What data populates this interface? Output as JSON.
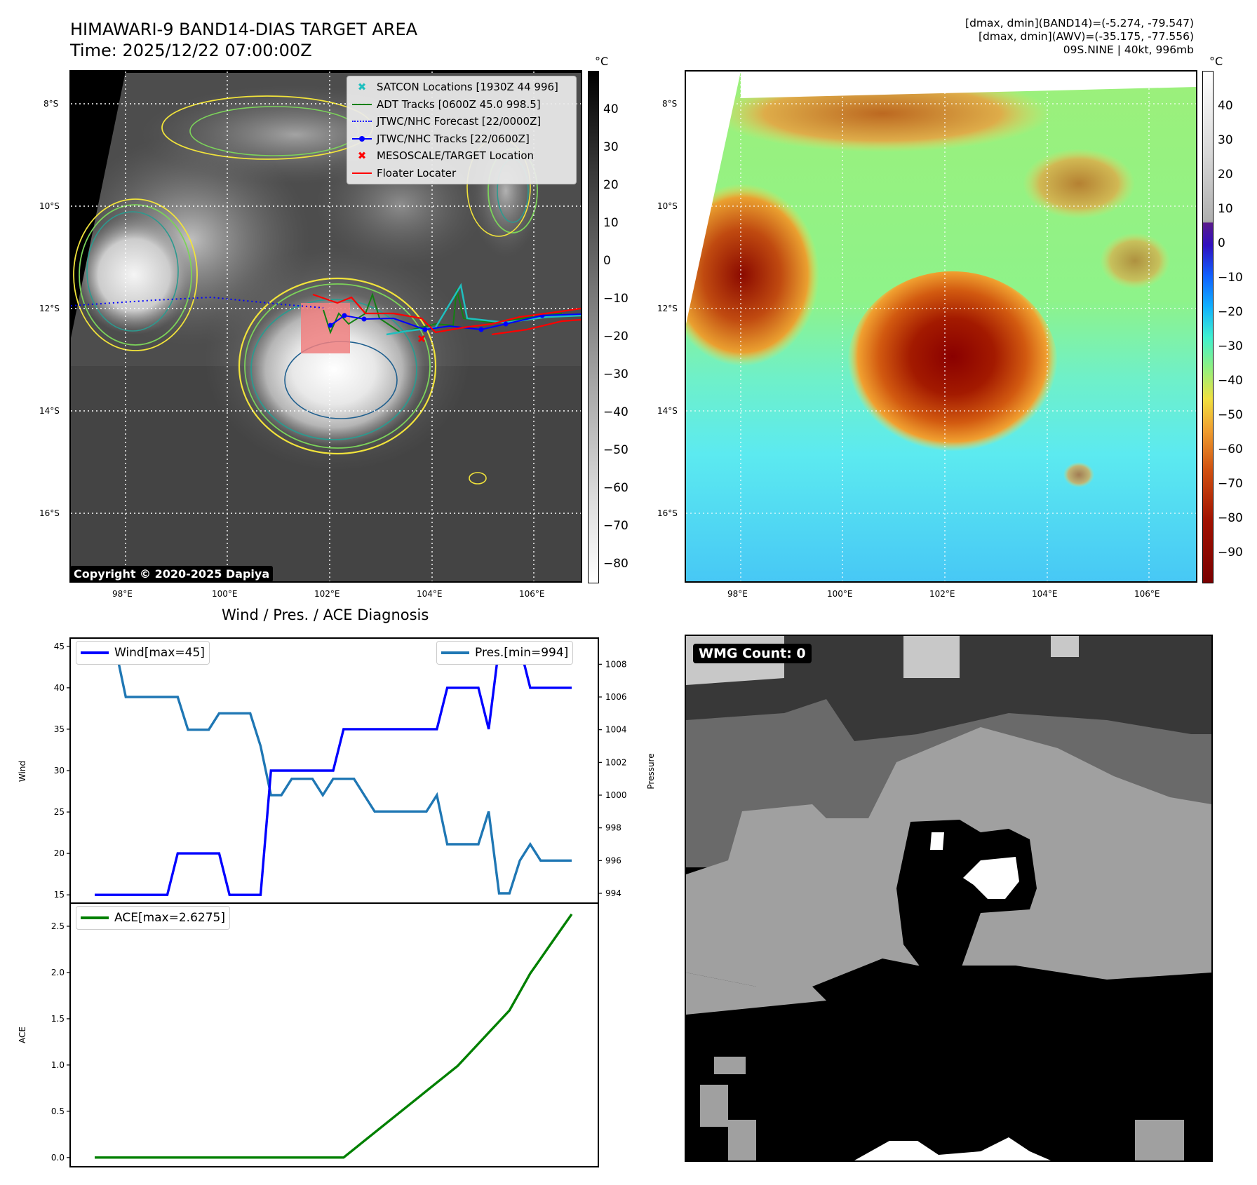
{
  "header": {
    "title_line1": "HIMAWARI-9 BAND14-DIAS TARGET AREA",
    "title_line2": "Time: 2025/12/22 07:00:00Z",
    "info_line1": "[dmax, dmin](BAND14)=(-5.274, -79.547)",
    "info_line2": "[dmax, dmin](AWV)=(-35.175, -77.556)",
    "info_line3": "09S.NINE | 40kt, 996mb"
  },
  "ir_map": {
    "lat_ticks": [
      "8°S",
      "10°S",
      "12°S",
      "14°S",
      "16°S"
    ],
    "lon_ticks": [
      "98°E",
      "100°E",
      "102°E",
      "104°E",
      "106°E"
    ],
    "colorbar_unit": "°C",
    "colorbar_ticks": [
      "40",
      "30",
      "20",
      "10",
      "0",
      "−10",
      "−20",
      "−30",
      "−40",
      "−50",
      "−60",
      "−70",
      "−80"
    ],
    "copyright": "Copyright © 2020-2025 Dapiya",
    "legend": [
      {
        "label": "SATCON Locations [1930Z 44 996]",
        "color": "#1fbfbf",
        "symbol": "x"
      },
      {
        "label": "ADT Tracks [0600Z 45.0 998.5]",
        "color": "#138013",
        "symbol": "line"
      },
      {
        "label": "JTWC/NHC Forecast [22/0000Z]",
        "color": "#0000ff",
        "symbol": "dotted"
      },
      {
        "label": "JTWC/NHC Tracks [22/0600Z]",
        "color": "#0000ff",
        "symbol": "line-dot"
      },
      {
        "label": "MESOSCALE/TARGET Location",
        "color": "#ff0000",
        "symbol": "x"
      },
      {
        "label": "Floater Locater",
        "color": "#ff0000",
        "symbol": "line"
      }
    ]
  },
  "color_map": {
    "lat_ticks": [
      "8°S",
      "10°S",
      "12°S",
      "14°S",
      "16°S"
    ],
    "lon_ticks": [
      "98°E",
      "100°E",
      "102°E",
      "104°E",
      "106°E"
    ],
    "colorbar_unit": "°C",
    "colorbar_ticks": [
      "40",
      "30",
      "20",
      "10",
      "0",
      "−10",
      "−20",
      "−30",
      "−40",
      "−50",
      "−60",
      "−70",
      "−80",
      "−90"
    ]
  },
  "diagnosis": {
    "title": "Wind / Pres. / ACE Diagnosis",
    "wind_ylabel": "Wind",
    "pres_ylabel": "Pressure",
    "ace_ylabel": "ACE",
    "wind_legend": "Wind[max=45]",
    "pres_legend": "Pres.[min=994]",
    "ace_legend": "ACE[max=2.6275]",
    "wind_ticks": [
      "45",
      "40",
      "35",
      "30",
      "25",
      "20",
      "15"
    ],
    "pres_ticks": [
      "1008",
      "1006",
      "1004",
      "1002",
      "1000",
      "998",
      "996",
      "994"
    ],
    "ace_ticks": [
      "2.5",
      "2.0",
      "1.5",
      "1.0",
      "0.5",
      "0.0"
    ]
  },
  "wmg": {
    "label": "WMG Count: 0"
  },
  "chart_data": [
    {
      "type": "line",
      "title": "Wind / Pres. / ACE Diagnosis",
      "ylabel": "Wind",
      "ylim": [
        14,
        46
      ],
      "series": [
        {
          "name": "Wind[max=45]",
          "color": "#0000ff",
          "values": [
            15,
            15,
            15,
            15,
            15,
            15,
            15,
            15,
            20,
            20,
            20,
            20,
            20,
            15,
            15,
            15,
            15,
            30,
            30,
            30,
            30,
            30,
            30,
            30,
            35,
            35,
            35,
            35,
            35,
            35,
            35,
            35,
            35,
            35,
            40,
            40,
            40,
            40,
            35,
            45,
            45,
            45,
            40,
            40,
            40,
            40,
            40
          ]
        }
      ]
    },
    {
      "type": "line",
      "ylabel": "Pressure",
      "ylim": [
        993.4,
        1009.6
      ],
      "series": [
        {
          "name": "Pres.[min=994]",
          "color": "#1f77b4",
          "values": [
            1009,
            1009,
            1009,
            1006,
            1006,
            1006,
            1006,
            1006,
            1006,
            1004,
            1004,
            1004,
            1005,
            1005,
            1005,
            1005,
            1003,
            1000,
            1000,
            1001,
            1001,
            1001,
            1000,
            1001,
            1001,
            1001,
            1000,
            999,
            999,
            999,
            999,
            999,
            999,
            1000,
            997,
            997,
            997,
            997,
            999,
            994,
            994,
            996,
            997,
            996,
            996,
            996,
            996
          ]
        }
      ]
    },
    {
      "type": "line",
      "ylabel": "ACE",
      "ylim": [
        -0.1,
        2.75
      ],
      "series": [
        {
          "name": "ACE[max=2.6275]",
          "color": "#008000",
          "values": [
            0,
            0,
            0,
            0,
            0,
            0,
            0,
            0,
            0,
            0,
            0,
            0,
            0,
            0,
            0,
            0,
            0,
            0,
            0,
            0,
            0,
            0,
            0,
            0,
            0,
            0.09,
            0.18,
            0.27,
            0.36,
            0.45,
            0.54,
            0.63,
            0.72,
            0.81,
            0.9,
            0.99,
            1.11,
            1.23,
            1.35,
            1.47,
            1.59,
            1.79,
            1.99,
            2.15,
            2.31,
            2.47,
            2.63
          ]
        }
      ]
    }
  ]
}
